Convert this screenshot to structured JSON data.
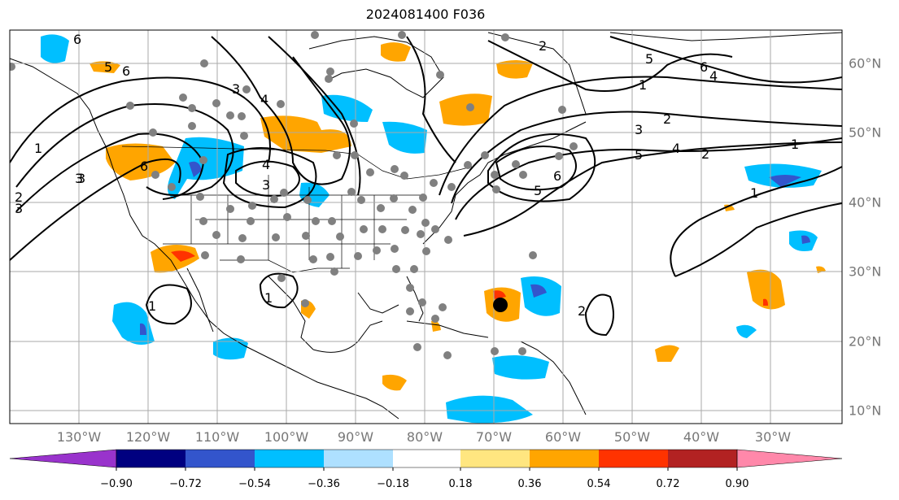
{
  "title": "2024081400 F036",
  "map": {
    "lon_labels": [
      "130°W",
      "120°W",
      "110°W",
      "100°W",
      "90°W",
      "80°W",
      "70°W",
      "60°W",
      "50°W",
      "40°W",
      "30°W"
    ],
    "lat_labels": [
      "60°N",
      "50°N",
      "40°N",
      "30°N",
      "20°N",
      "10°N"
    ],
    "contour_color": "#000000",
    "station_color": "#808080",
    "storm_marker_color": "#000000",
    "contour_labels": [
      "6",
      "2",
      "5",
      "6",
      "4",
      "1",
      "3",
      "4",
      "6",
      "5",
      "1",
      "3",
      "2",
      "4",
      "3",
      "5",
      "1",
      "6",
      "2",
      "3",
      "5",
      "4",
      "6",
      "2",
      "1",
      "1",
      "1",
      "2",
      "3",
      "3"
    ]
  },
  "colorbar": {
    "tick_labels": [
      "−0.90",
      "−0.72",
      "−0.54",
      "−0.36",
      "−0.18",
      "0.18",
      "0.36",
      "0.54",
      "0.72",
      "0.90"
    ],
    "colors": [
      "#9933cc",
      "#000080",
      "#3355cc",
      "#00bfff",
      "#aee0ff",
      "#ffffff",
      "#ffe680",
      "#ffa500",
      "#ff3300",
      "#b22222",
      "#ff88aa"
    ]
  }
}
